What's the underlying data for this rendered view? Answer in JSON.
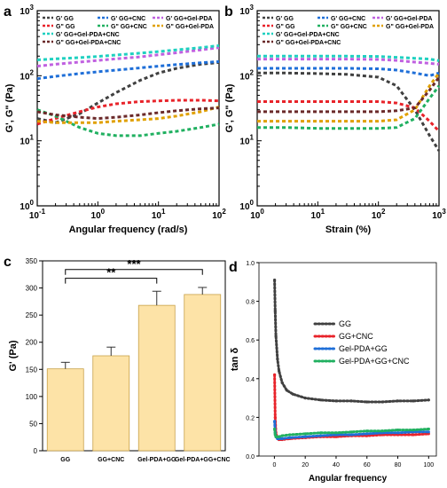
{
  "colors": {
    "GG": "#404040",
    "GG+CNC": "#e8232a",
    "GG+Gel-PDA": "#1f6fd8",
    "GG+Gel-PDA+CNC": "#1fd0c0",
    "purple": "#c060e0",
    "orange": "#e0a000",
    "green": "#20b060",
    "darkred": "#6b2a2a",
    "bar": "#fde3a7",
    "bar_edge": "#c8a24a"
  },
  "chart_data": [
    {
      "panel": "a",
      "type": "line",
      "xlabel": "Angular frequency (rad/s)",
      "ylabel": "G', G\" (Pa)",
      "xscale": "log",
      "yscale": "log",
      "xlim": [
        0.1,
        100
      ],
      "ylim": [
        1,
        1000
      ],
      "xticks": [
        "10^-1",
        "10^0",
        "10^1",
        "10^2"
      ],
      "yticks": [
        "10^0",
        "10^1",
        "10^2",
        "10^3"
      ],
      "legend": [
        "G'  GG",
        "G\"  GG",
        "G'  GG+CNC",
        "G\"  GG+CNC",
        "G'  GG+Gel-PDA",
        "G\"  GG+Gel-PDA",
        "G'  GG+Gel-PDA+CNC",
        "G\"  GG+Gel-PDA+CNC"
      ],
      "series": [
        {
          "name": "G'  GG",
          "color": "#404040",
          "x": [
            0.1,
            0.2,
            0.5,
            1,
            2,
            5,
            10,
            20,
            50,
            100
          ],
          "y": [
            22,
            19,
            26,
            38,
            55,
            85,
            110,
            130,
            150,
            160
          ]
        },
        {
          "name": "G\"  GG",
          "color": "#e8232a",
          "x": [
            0.1,
            0.2,
            0.5,
            1,
            2,
            5,
            10,
            20,
            50,
            100
          ],
          "y": [
            18,
            22,
            28,
            33,
            37,
            40,
            41,
            42,
            42,
            41
          ]
        },
        {
          "name": "G'  GG+CNC",
          "color": "#1f6fd8",
          "x": [
            0.1,
            0.2,
            0.5,
            1,
            2,
            5,
            10,
            20,
            50,
            100
          ],
          "y": [
            90,
            98,
            108,
            115,
            122,
            132,
            140,
            148,
            158,
            165
          ]
        },
        {
          "name": "G\"  GG+CNC",
          "color": "#20b060",
          "x": [
            0.1,
            0.2,
            0.5,
            1,
            2,
            5,
            10,
            20,
            50,
            100
          ],
          "y": [
            30,
            24,
            16,
            13,
            12,
            12,
            13,
            14,
            16,
            18
          ]
        },
        {
          "name": "G'  GG+Gel-PDA",
          "color": "#c060e0",
          "x": [
            0.1,
            0.2,
            0.5,
            1,
            2,
            5,
            10,
            20,
            50,
            100
          ],
          "y": [
            140,
            150,
            162,
            172,
            182,
            195,
            210,
            225,
            250,
            270
          ]
        },
        {
          "name": "G\"  GG+Gel-PDA",
          "color": "#e0a000",
          "x": [
            0.1,
            0.2,
            0.5,
            1,
            2,
            5,
            10,
            20,
            50,
            100
          ],
          "y": [
            20,
            19,
            19,
            19,
            20,
            21,
            22,
            24,
            28,
            33
          ]
        },
        {
          "name": "G'  GG+Gel-PDA+CNC",
          "color": "#1fd0c0",
          "x": [
            0.1,
            0.2,
            0.5,
            1,
            2,
            5,
            10,
            20,
            50,
            100
          ],
          "y": [
            175,
            182,
            190,
            198,
            208,
            222,
            235,
            250,
            270,
            290
          ]
        },
        {
          "name": "G\"  GG+Gel-PDA+CNC",
          "color": "#6b2a2a",
          "x": [
            0.1,
            0.2,
            0.5,
            1,
            2,
            5,
            10,
            20,
            50,
            100
          ],
          "y": [
            28,
            25,
            23,
            22,
            23,
            25,
            27,
            29,
            31,
            32
          ]
        }
      ]
    },
    {
      "panel": "b",
      "type": "line",
      "xlabel": "Strain (%)",
      "ylabel": "G', G\" (Pa)",
      "xscale": "log",
      "yscale": "log",
      "xlim": [
        1,
        1000
      ],
      "ylim": [
        1,
        1000
      ],
      "xticks": [
        "10^0",
        "10^1",
        "10^2",
        "10^3"
      ],
      "yticks": [
        "10^0",
        "10^1",
        "10^2",
        "10^3"
      ],
      "legend": [
        "G'  GG",
        "G\"  GG",
        "G'  GG+CNC",
        "G\"  GG+CNC",
        "G'  GG+Gel-PDA",
        "G\"  GG+Gel-PDA",
        "G'  GG+Gel-PDA+CNC",
        "G\"  GG+Gel-PDA+CNC"
      ],
      "series": [
        {
          "name": "G'  GG",
          "color": "#404040",
          "x": [
            1,
            3,
            10,
            30,
            100,
            200,
            400,
            700,
            1000
          ],
          "y": [
            110,
            110,
            108,
            105,
            95,
            70,
            30,
            12,
            7
          ]
        },
        {
          "name": "G\"  GG",
          "color": "#e8232a",
          "x": [
            1,
            3,
            10,
            30,
            100,
            200,
            400,
            700,
            1000
          ],
          "y": [
            40,
            40,
            40,
            40,
            40,
            38,
            32,
            20,
            14
          ]
        },
        {
          "name": "G'  GG+CNC",
          "color": "#1f6fd8",
          "x": [
            1,
            3,
            10,
            30,
            100,
            200,
            400,
            700,
            1000
          ],
          "y": [
            130,
            130,
            130,
            130,
            128,
            122,
            110,
            100,
            110
          ]
        },
        {
          "name": "G\"  GG+CNC",
          "color": "#20b060",
          "x": [
            1,
            3,
            10,
            30,
            100,
            200,
            400,
            700,
            1000
          ],
          "y": [
            16,
            16,
            15.5,
            15.5,
            15.5,
            16,
            22,
            45,
            70
          ]
        },
        {
          "name": "G'  GG+Gel-PDA",
          "color": "#c060e0",
          "x": [
            1,
            3,
            10,
            30,
            100,
            200,
            400,
            700,
            1000
          ],
          "y": [
            180,
            180,
            180,
            180,
            178,
            172,
            162,
            155,
            150
          ]
        },
        {
          "name": "G\"  GG+Gel-PDA",
          "color": "#e0a000",
          "x": [
            1,
            3,
            10,
            30,
            100,
            200,
            400,
            700,
            1000
          ],
          "y": [
            20,
            20,
            20,
            20,
            20,
            21,
            30,
            70,
            110
          ]
        },
        {
          "name": "G'  GG+Gel-PDA+CNC",
          "color": "#1fd0c0",
          "x": [
            1,
            3,
            10,
            30,
            100,
            200,
            400,
            700,
            1000
          ],
          "y": [
            200,
            200,
            200,
            200,
            198,
            192,
            185,
            180,
            170
          ]
        },
        {
          "name": "G\"  GG+Gel-PDA+CNC",
          "color": "#6b2a2a",
          "x": [
            1,
            3,
            10,
            30,
            100,
            200,
            400,
            700,
            1000
          ],
          "y": [
            28,
            28,
            28,
            28,
            28,
            29,
            32,
            60,
            95
          ]
        }
      ]
    },
    {
      "panel": "c",
      "type": "bar",
      "xlabel": "",
      "ylabel": "G' (Pa)",
      "ylim": [
        0,
        350
      ],
      "yticks": [
        "0",
        "50",
        "100",
        "150",
        "200",
        "250",
        "300",
        "350"
      ],
      "categories": [
        "GG",
        "GG+CNC",
        "Gel-PDA+GG",
        "Gel-PDA+GG+CNC"
      ],
      "values": [
        151,
        175,
        268,
        288
      ],
      "errors": [
        12,
        16,
        26,
        13
      ],
      "significance": [
        {
          "from": 0,
          "to": 2,
          "label": "**"
        },
        {
          "from": 0,
          "to": 3,
          "label": "***"
        }
      ]
    },
    {
      "panel": "d",
      "type": "scatter",
      "xlabel": "Angular frequency",
      "ylabel": "tan δ",
      "xlim": [
        -10,
        105
      ],
      "ylim": [
        0,
        1.0
      ],
      "xticks": [
        "0",
        "20",
        "40",
        "60",
        "80",
        "100"
      ],
      "yticks": [
        "0.0",
        "0.2",
        "0.4",
        "0.6",
        "0.8",
        "1.0"
      ],
      "legend": [
        "GG",
        "GG+CNC",
        "Gel-PDA+GG",
        "Gel-PDA+GG+CNC"
      ],
      "series": [
        {
          "name": "GG",
          "color": "#404040",
          "x": [
            0.1,
            0.5,
            1,
            2,
            3,
            5,
            8,
            12,
            20,
            30,
            40,
            50,
            60,
            70,
            80,
            90,
            100
          ],
          "y": [
            0.91,
            0.75,
            0.62,
            0.5,
            0.44,
            0.38,
            0.34,
            0.32,
            0.3,
            0.29,
            0.285,
            0.285,
            0.28,
            0.28,
            0.285,
            0.285,
            0.29
          ]
        },
        {
          "name": "GG+CNC",
          "color": "#e8232a",
          "x": [
            0.1,
            0.5,
            1,
            2,
            3,
            5,
            10,
            20,
            30,
            40,
            50,
            60,
            70,
            80,
            90,
            100
          ],
          "y": [
            0.42,
            0.2,
            0.12,
            0.09,
            0.085,
            0.085,
            0.09,
            0.095,
            0.1,
            0.1,
            0.105,
            0.105,
            0.11,
            0.11,
            0.11,
            0.115
          ]
        },
        {
          "name": "Gel-PDA+GG",
          "color": "#1f6fd8",
          "x": [
            0.1,
            0.5,
            1,
            2,
            3,
            5,
            10,
            20,
            30,
            40,
            50,
            60,
            70,
            80,
            90,
            100
          ],
          "y": [
            0.18,
            0.12,
            0.1,
            0.09,
            0.09,
            0.09,
            0.095,
            0.1,
            0.105,
            0.11,
            0.11,
            0.115,
            0.12,
            0.12,
            0.125,
            0.125
          ]
        },
        {
          "name": "Gel-PDA+GG+CNC",
          "color": "#20b060",
          "x": [
            0.1,
            0.5,
            1,
            2,
            3,
            5,
            10,
            20,
            30,
            40,
            50,
            60,
            70,
            80,
            90,
            100
          ],
          "y": [
            0.14,
            0.11,
            0.1,
            0.1,
            0.1,
            0.105,
            0.11,
            0.115,
            0.12,
            0.12,
            0.125,
            0.13,
            0.13,
            0.135,
            0.135,
            0.14
          ]
        }
      ]
    }
  ],
  "panel_labels": [
    "a",
    "b",
    "c",
    "d"
  ]
}
